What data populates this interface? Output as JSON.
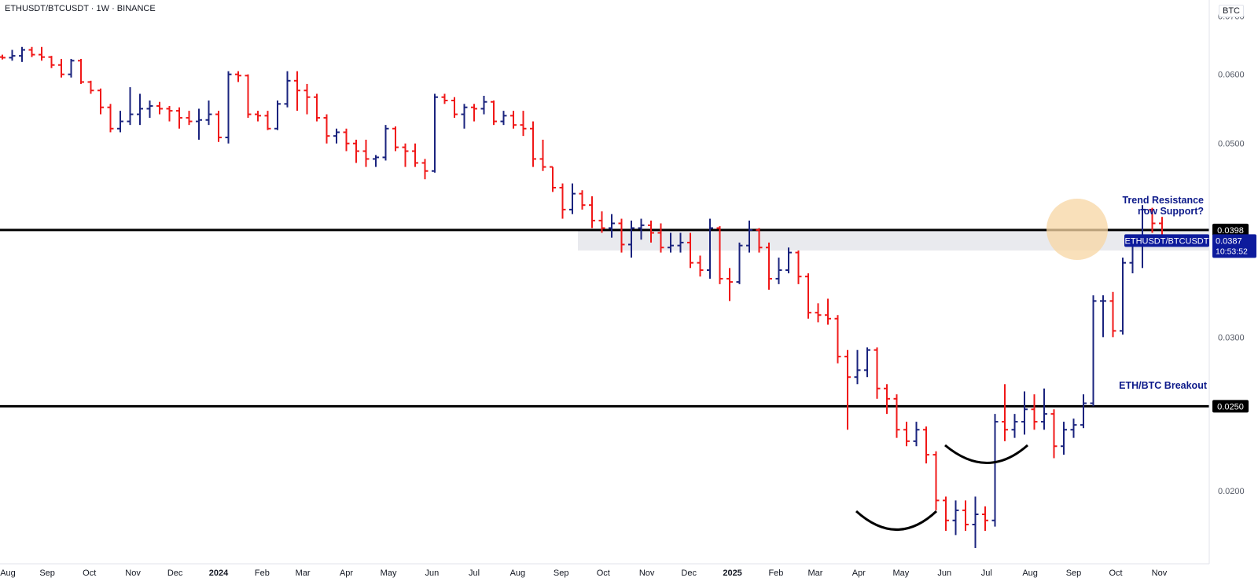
{
  "header": {
    "title": "ETHUSDT/BTCUSDT · 1W · BINANCE",
    "currency": "BTC"
  },
  "colors": {
    "up": "#1a237e",
    "down": "#f01818",
    "level_line": "#000000",
    "zone_fill": "#e9eaee",
    "highlight_circle": "#f7d6a3",
    "annotation_text": "#0d1a8a",
    "price_badge_bg": "#0d1b9c"
  },
  "annotations": {
    "trend": "Trend Resistance\nnow Support?",
    "breakout": "ETH/BTC Breakout"
  },
  "price_badges": {
    "resistance": "0.0398",
    "support": "0.0250",
    "symbol": "ETHUSDT/BTCUSDT",
    "last_price": "0.0387",
    "countdown": "10:53:52"
  },
  "chart_data": {
    "type": "ohlc",
    "symbol": "ETHUSDT/BTCUSDT",
    "interval": "1W",
    "exchange": "BINANCE",
    "y_scale": "log",
    "ylim": [
      0.0165,
      0.073
    ],
    "yticks": [
      "0.0700",
      "0.0600",
      "0.0500",
      "0.0300",
      "0.0200"
    ],
    "xtick_labels": [
      "Aug",
      "Sep",
      "Oct",
      "Nov",
      "Dec",
      "2024",
      "Feb",
      "Mar",
      "Apr",
      "May",
      "Jun",
      "Jul",
      "Aug",
      "Sep",
      "Oct",
      "Nov",
      "Dec",
      "2025",
      "Feb",
      "Mar",
      "Apr",
      "May",
      "Jun",
      "Jul",
      "Aug",
      "Sep",
      "Oct",
      "Nov"
    ],
    "levels": [
      {
        "value": 0.0398,
        "label": "0.0398"
      },
      {
        "value": 0.025,
        "label": "0.0250"
      }
    ],
    "zone": [
      0.0377,
      0.0398
    ],
    "last": 0.0387,
    "start_date": "2023-07-31",
    "bars": [
      [
        0.0628,
        0.0632,
        0.0624,
        0.0627
      ],
      [
        0.0627,
        0.064,
        0.0622,
        0.063
      ],
      [
        0.063,
        0.0645,
        0.062,
        0.064
      ],
      [
        0.064,
        0.0645,
        0.0628,
        0.0632
      ],
      [
        0.0632,
        0.0645,
        0.0622,
        0.0628
      ],
      [
        0.0628,
        0.063,
        0.061,
        0.0615
      ],
      [
        0.0615,
        0.0625,
        0.0595,
        0.06
      ],
      [
        0.06,
        0.0625,
        0.0595,
        0.0622
      ],
      [
        0.0622,
        0.0625,
        0.0585,
        0.0588
      ],
      [
        0.0588,
        0.059,
        0.057,
        0.0575
      ],
      [
        0.0575,
        0.0578,
        0.054,
        0.055
      ],
      [
        0.055,
        0.0555,
        0.0515,
        0.052
      ],
      [
        0.052,
        0.0545,
        0.0515,
        0.053
      ],
      [
        0.053,
        0.058,
        0.0525,
        0.054
      ],
      [
        0.054,
        0.057,
        0.0525,
        0.0548
      ],
      [
        0.0548,
        0.056,
        0.0535,
        0.0552
      ],
      [
        0.0552,
        0.0558,
        0.054,
        0.0548
      ],
      [
        0.0548,
        0.0552,
        0.053,
        0.0545
      ],
      [
        0.0545,
        0.055,
        0.052,
        0.0535
      ],
      [
        0.0535,
        0.0545,
        0.0525,
        0.053
      ],
      [
        0.053,
        0.0548,
        0.0505,
        0.0532
      ],
      [
        0.0532,
        0.056,
        0.0525,
        0.054
      ],
      [
        0.054,
        0.0545,
        0.0502,
        0.0508
      ],
      [
        0.0508,
        0.0605,
        0.05,
        0.06
      ],
      [
        0.06,
        0.0605,
        0.0588,
        0.0598
      ],
      [
        0.0598,
        0.06,
        0.0535,
        0.054
      ],
      [
        0.054,
        0.0545,
        0.053,
        0.0538
      ],
      [
        0.0538,
        0.0545,
        0.0518,
        0.052
      ],
      [
        0.052,
        0.056,
        0.0518,
        0.0555
      ],
      [
        0.0555,
        0.0605,
        0.055,
        0.059
      ],
      [
        0.059,
        0.0605,
        0.0545,
        0.0575
      ],
      [
        0.0575,
        0.0585,
        0.054,
        0.0565
      ],
      [
        0.0565,
        0.057,
        0.053,
        0.0535
      ],
      [
        0.0535,
        0.054,
        0.05,
        0.051
      ],
      [
        0.051,
        0.052,
        0.05,
        0.0515
      ],
      [
        0.0515,
        0.052,
        0.049,
        0.05
      ],
      [
        0.05,
        0.0505,
        0.0475,
        0.049
      ],
      [
        0.049,
        0.0505,
        0.047,
        0.048
      ],
      [
        0.048,
        0.0485,
        0.047,
        0.0482
      ],
      [
        0.0482,
        0.0525,
        0.0478,
        0.052
      ],
      [
        0.052,
        0.0523,
        0.049,
        0.0495
      ],
      [
        0.0495,
        0.05,
        0.047,
        0.049
      ],
      [
        0.049,
        0.05,
        0.047,
        0.0475
      ],
      [
        0.0475,
        0.048,
        0.0455,
        0.0465
      ],
      [
        0.0465,
        0.057,
        0.0463,
        0.0565
      ],
      [
        0.0565,
        0.057,
        0.0555,
        0.056
      ],
      [
        0.056,
        0.0565,
        0.0535,
        0.054
      ],
      [
        0.054,
        0.0555,
        0.052,
        0.055
      ],
      [
        0.055,
        0.0555,
        0.053,
        0.0548
      ],
      [
        0.0548,
        0.0567,
        0.054,
        0.0558
      ],
      [
        0.0558,
        0.056,
        0.0525,
        0.053
      ],
      [
        0.053,
        0.0545,
        0.0525,
        0.0538
      ],
      [
        0.0538,
        0.0545,
        0.052,
        0.0525
      ],
      [
        0.0525,
        0.0545,
        0.051,
        0.052
      ],
      [
        0.052,
        0.053,
        0.047,
        0.048
      ],
      [
        0.048,
        0.0505,
        0.0465,
        0.047
      ],
      [
        0.047,
        0.047,
        0.044,
        0.0445
      ],
      [
        0.0445,
        0.045,
        0.041,
        0.042
      ],
      [
        0.042,
        0.045,
        0.0415,
        0.0438
      ],
      [
        0.0438,
        0.0442,
        0.042,
        0.0425
      ],
      [
        0.0425,
        0.0435,
        0.04,
        0.0408
      ],
      [
        0.0408,
        0.0418,
        0.0395,
        0.04
      ],
      [
        0.04,
        0.0415,
        0.039,
        0.0405
      ],
      [
        0.0405,
        0.041,
        0.0375,
        0.0383
      ],
      [
        0.0383,
        0.0408,
        0.037,
        0.04
      ],
      [
        0.04,
        0.041,
        0.0388,
        0.0403
      ],
      [
        0.0403,
        0.0408,
        0.0385,
        0.0395
      ],
      [
        0.0395,
        0.0405,
        0.0375,
        0.038
      ],
      [
        0.038,
        0.0395,
        0.0375,
        0.0382
      ],
      [
        0.0382,
        0.0395,
        0.0375,
        0.0385
      ],
      [
        0.0385,
        0.0395,
        0.036,
        0.0365
      ],
      [
        0.0365,
        0.0372,
        0.0352,
        0.0358
      ],
      [
        0.0358,
        0.041,
        0.035,
        0.04
      ],
      [
        0.04,
        0.0402,
        0.0345,
        0.035
      ],
      [
        0.035,
        0.036,
        0.033,
        0.0347
      ],
      [
        0.0347,
        0.0385,
        0.0345,
        0.0382
      ],
      [
        0.0382,
        0.0408,
        0.0375,
        0.0398
      ],
      [
        0.0398,
        0.04,
        0.0375,
        0.038
      ],
      [
        0.038,
        0.0385,
        0.034,
        0.035
      ],
      [
        0.035,
        0.037,
        0.0345,
        0.0358
      ],
      [
        0.0358,
        0.038,
        0.0355,
        0.0375
      ],
      [
        0.0375,
        0.0377,
        0.0345,
        0.0352
      ],
      [
        0.0352,
        0.0355,
        0.0315,
        0.032
      ],
      [
        0.032,
        0.0328,
        0.0312,
        0.0318
      ],
      [
        0.0318,
        0.0332,
        0.031,
        0.0315
      ],
      [
        0.0315,
        0.0318,
        0.028,
        0.0285
      ],
      [
        0.0285,
        0.029,
        0.0235,
        0.027
      ],
      [
        0.027,
        0.029,
        0.0265,
        0.0275
      ],
      [
        0.0275,
        0.0292,
        0.027,
        0.029
      ],
      [
        0.029,
        0.0292,
        0.0255,
        0.0262
      ],
      [
        0.0262,
        0.0265,
        0.0245,
        0.0255
      ],
      [
        0.0255,
        0.0258,
        0.023,
        0.0235
      ],
      [
        0.0235,
        0.024,
        0.0225,
        0.0228
      ],
      [
        0.0228,
        0.024,
        0.0225,
        0.0235
      ],
      [
        0.0235,
        0.0237,
        0.0215,
        0.022
      ],
      [
        0.022,
        0.0222,
        0.019,
        0.0195
      ],
      [
        0.0195,
        0.0197,
        0.018,
        0.0185
      ],
      [
        0.0185,
        0.0195,
        0.0178,
        0.019
      ],
      [
        0.019,
        0.0195,
        0.018,
        0.0183
      ],
      [
        0.0183,
        0.0197,
        0.0172,
        0.0188
      ],
      [
        0.0188,
        0.0192,
        0.018,
        0.0185
      ],
      [
        0.0185,
        0.0245,
        0.0182,
        0.024
      ],
      [
        0.024,
        0.0265,
        0.0228,
        0.0235
      ],
      [
        0.0235,
        0.0245,
        0.023,
        0.024
      ],
      [
        0.024,
        0.026,
        0.0232,
        0.0248
      ],
      [
        0.0248,
        0.0258,
        0.0235,
        0.024
      ],
      [
        0.024,
        0.0262,
        0.0235,
        0.0245
      ],
      [
        0.0245,
        0.0248,
        0.0218,
        0.0225
      ],
      [
        0.0225,
        0.024,
        0.022,
        0.0235
      ],
      [
        0.0235,
        0.0242,
        0.023,
        0.0238
      ],
      [
        0.0238,
        0.0258,
        0.0236,
        0.0252
      ],
      [
        0.0252,
        0.0335,
        0.025,
        0.033
      ],
      [
        0.033,
        0.0335,
        0.03,
        0.033
      ],
      [
        0.033,
        0.0338,
        0.03,
        0.0305
      ],
      [
        0.0305,
        0.037,
        0.0302,
        0.0365
      ],
      [
        0.0365,
        0.039,
        0.0355,
        0.0385
      ],
      [
        0.0385,
        0.0425,
        0.036,
        0.042
      ],
      [
        0.042,
        0.0422,
        0.0395,
        0.0405
      ],
      [
        0.0405,
        0.0412,
        0.0385,
        0.0387
      ]
    ]
  }
}
